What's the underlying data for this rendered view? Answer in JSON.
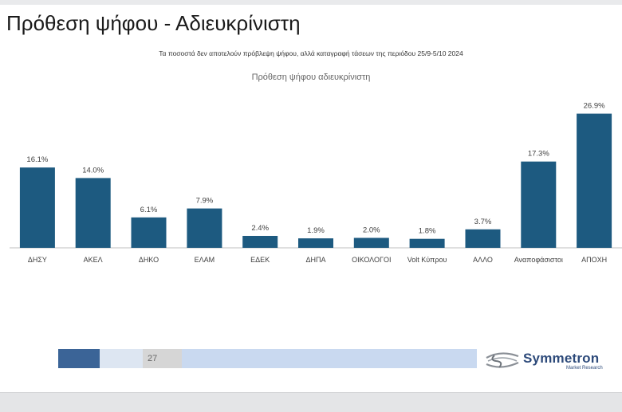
{
  "header": {
    "title": "Πρόθεση ψήφου - Αδιευκρίνιστη",
    "subtitle": "Τα ποσοστά δεν αποτελούν πρόβλεψη ψήφου, αλλά καταγραφή τάσεων της περιόδου 25/9-5/10 2024"
  },
  "chart_data": {
    "type": "bar",
    "title": "Πρόθεση ψήφου αδιευκρίνιστη",
    "categories": [
      "ΔΗΣΥ",
      "ΑΚΕΛ",
      "ΔΗΚΟ",
      "ΕΛΑΜ",
      "ΕΔΕΚ",
      "ΔΗΠΑ",
      "ΟΙΚΟΛΟΓΟΙ",
      "Volt Κύπρου",
      "ΑΛΛΟ",
      "Αναποφάσιστοι",
      "ΑΠΟΧΗ"
    ],
    "values": [
      16.1,
      14.0,
      6.1,
      7.9,
      2.4,
      1.9,
      2.0,
      1.8,
      3.7,
      17.3,
      26.9
    ],
    "data_labels": [
      "16.1%",
      "14.0%",
      "6.1%",
      "7.9%",
      "2.4%",
      "1.9%",
      "2.0%",
      "1.8%",
      "3.7%",
      "17.3%",
      "26.9%"
    ],
    "bar_color": "#1d5a80",
    "ylim": [
      0,
      27
    ],
    "grid": false,
    "legend": "none"
  },
  "footer": {
    "page_number": "27",
    "logo_name": "Symmetron",
    "logo_tagline": "Market Research",
    "colors": [
      "#3b6497",
      "#dde6f2",
      "#d6d6d6",
      "#c9d9f0"
    ]
  }
}
